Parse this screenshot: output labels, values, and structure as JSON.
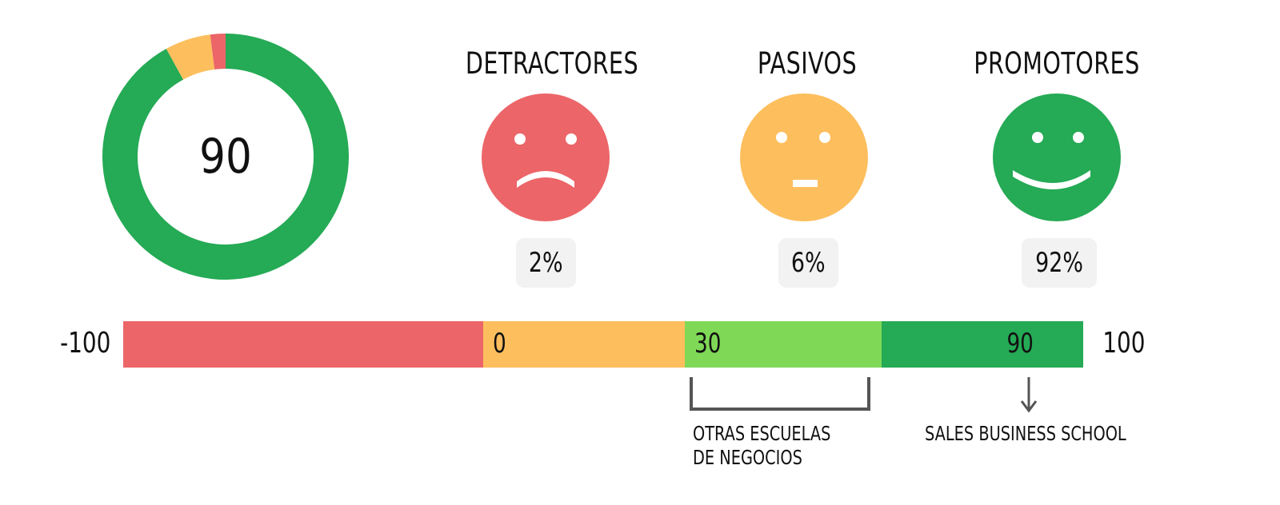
{
  "colors": {
    "detractor": "#ec6568",
    "passive": "#fdbe5d",
    "promoter": "#25aa55",
    "light_green": "#7fd957",
    "pill_bg": "#f2f2f2",
    "bracket": "#555555"
  },
  "chart_data": [
    {
      "type": "pie",
      "variant": "donut",
      "center_value": "90",
      "slices": [
        {
          "label": "Promotores",
          "value": 92,
          "color": "#25aa55"
        },
        {
          "label": "Pasivos",
          "value": 6,
          "color": "#fdbe5d"
        },
        {
          "label": "Detractores",
          "value": 2,
          "color": "#ec6568"
        }
      ]
    },
    {
      "type": "bar",
      "variant": "scale",
      "min": -100,
      "max": 100,
      "min_label": "-100",
      "max_label": "100",
      "segments": [
        {
          "from": -100,
          "to": -25,
          "color": "#ec6568",
          "label": ""
        },
        {
          "from": -25,
          "to": 17,
          "color": "#fdbe5d",
          "label": "0"
        },
        {
          "from": 17,
          "to": 58,
          "color": "#7fd957",
          "label": "30"
        },
        {
          "from": 58,
          "to": 100,
          "color": "#25aa55",
          "label": "90"
        }
      ],
      "annotations": [
        {
          "type": "bracket",
          "from": 19,
          "to": 56,
          "text_lines": [
            "OTRAS ESCUELAS",
            "DE NEGOCIOS"
          ]
        },
        {
          "type": "arrow",
          "value": 90,
          "text_lines": [
            "SALES BUSINESS SCHOOL"
          ]
        }
      ]
    }
  ],
  "categories": [
    {
      "key": "detractor",
      "title": "DETRACTORES",
      "percent": "2%",
      "mood": "sad",
      "color": "#ec6568"
    },
    {
      "key": "passive",
      "title": "PASIVOS",
      "percent": "6%",
      "mood": "neutral",
      "color": "#fdbe5d"
    },
    {
      "key": "promoter",
      "title": "PROMOTORES",
      "percent": "92%",
      "mood": "happy",
      "color": "#25aa55"
    }
  ]
}
